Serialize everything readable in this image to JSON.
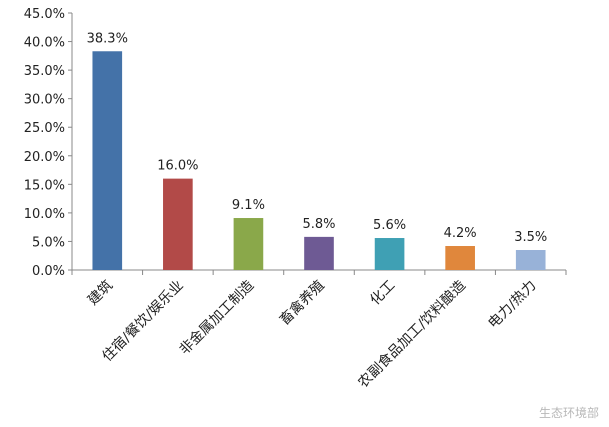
{
  "chart_data": {
    "type": "bar",
    "title": "",
    "xlabel": "",
    "ylabel": "",
    "categories": [
      "建筑",
      "住宿/餐饮/娱乐业",
      "非金属加工制造",
      "畜禽养殖",
      "化工",
      "农副食品加工/饮料酿造",
      "电力/热力"
    ],
    "values": [
      38.3,
      16.0,
      9.1,
      5.8,
      5.6,
      4.2,
      3.5
    ],
    "data_labels": [
      "38.3%",
      "16.0%",
      "9.1%",
      "5.8%",
      "5.6%",
      "4.2%",
      "3.5%"
    ],
    "colors": [
      "#4472a8",
      "#b24a48",
      "#8aa84a",
      "#6e5a94",
      "#3fa0b4",
      "#e0873c",
      "#98b2d8"
    ],
    "ylim": [
      0,
      45
    ],
    "yticks": [
      0,
      5,
      10,
      15,
      20,
      25,
      30,
      35,
      40,
      45
    ],
    "ytick_labels": [
      "0.0%",
      "5.0%",
      "10.0%",
      "15.0%",
      "20.0%",
      "25.0%",
      "30.0%",
      "35.0%",
      "40.0%",
      "45.0%"
    ],
    "grid": false,
    "legend": "none"
  },
  "watermark": "生态环境部"
}
